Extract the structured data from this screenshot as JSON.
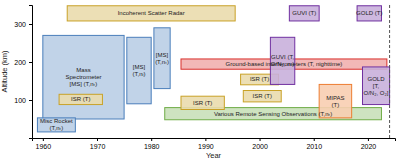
{
  "chart_data": {
    "type": "range",
    "x_label": "Year",
    "y_label": "Altitude (km)",
    "xlim": [
      1958,
      2025
    ],
    "ylim": [
      0,
      350
    ],
    "xticks": [
      1960,
      1970,
      1980,
      1990,
      2000,
      2010,
      2020
    ],
    "yticks": [
      100,
      200,
      300
    ],
    "grid": false,
    "items": [
      {
        "label": "Ground-based interferometers (T, nighttime)",
        "x": [
          1985.5,
          2023.5
        ],
        "y": [
          181,
          208
        ],
        "color": "#d9302c"
      },
      {
        "label": "Various Remote Sensing Observations (T,nₜ)",
        "x": [
          1982.5,
          2022.5
        ],
        "y": [
          48,
          80
        ],
        "color": "#70ad47"
      },
      {
        "label": "Incoherent Scatter Radar",
        "x": [
          1964.5,
          1995.5
        ],
        "y": [
          308,
          348
        ],
        "color": "#c9a227"
      },
      {
        "label": "Mass\nSpectrometer\n[MS] (T,nₜ)",
        "x": [
          1960,
          1975
        ],
        "y": [
          50,
          270
        ],
        "color": "#4a7ebb"
      },
      {
        "label": "[MS]\n(T,nᵢ)",
        "x": [
          1975.5,
          1980
        ],
        "y": [
          90,
          265
        ],
        "color": "#4a7ebb"
      },
      {
        "label": "[MS]\n(T,nₜ)",
        "x": [
          1980.5,
          1983.5
        ],
        "y": [
          130,
          290
        ],
        "color": "#4a7ebb"
      },
      {
        "label": "Misc Rocket\n(T,nₜ)",
        "x": [
          1959,
          1966
        ],
        "y": [
          16,
          53
        ],
        "color": "#4a7ebb"
      },
      {
        "label": "ISR (T)",
        "x": [
          1963,
          1971
        ],
        "y": [
          88,
          115
        ],
        "color": "#c9a227"
      },
      {
        "label": "ISR (T)",
        "x": [
          1985.5,
          1993.5
        ],
        "y": [
          75,
          110
        ],
        "color": "#c9a227"
      },
      {
        "label": "ISR (T)",
        "x": [
          1996.5,
          2003.5
        ],
        "y": [
          140,
          168
        ],
        "color": "#c9a227"
      },
      {
        "label": "ISR (T)",
        "x": [
          1997,
          2004
        ],
        "y": [
          95,
          125
        ],
        "color": "#c9a227"
      },
      {
        "label": "GUVI (T,\nO/N₂, nₜ)",
        "x": [
          2002,
          2006.5
        ],
        "y": [
          141,
          265
        ],
        "color": "#7030a0"
      },
      {
        "label": "GUVI (T)",
        "x": [
          2005.5,
          2011
        ],
        "y": [
          308,
          348
        ],
        "color": "#7030a0"
      },
      {
        "label": "GOLD (T)",
        "x": [
          2018,
          2022.5
        ],
        "y": [
          308,
          348
        ],
        "color": "#7030a0"
      },
      {
        "label": "GOLD\n[T,\nO/N₂, O₂]",
        "x": [
          2019,
          2024
        ],
        "y": [
          88,
          187
        ],
        "color": "#7030a0"
      },
      {
        "label": "MIPAS\n(T)",
        "x": [
          2011,
          2017
        ],
        "y": [
          53,
          141
        ],
        "color": "#ed7d31"
      }
    ],
    "vlines": [
      {
        "x": 2024,
        "line_style": "dashed"
      }
    ]
  }
}
